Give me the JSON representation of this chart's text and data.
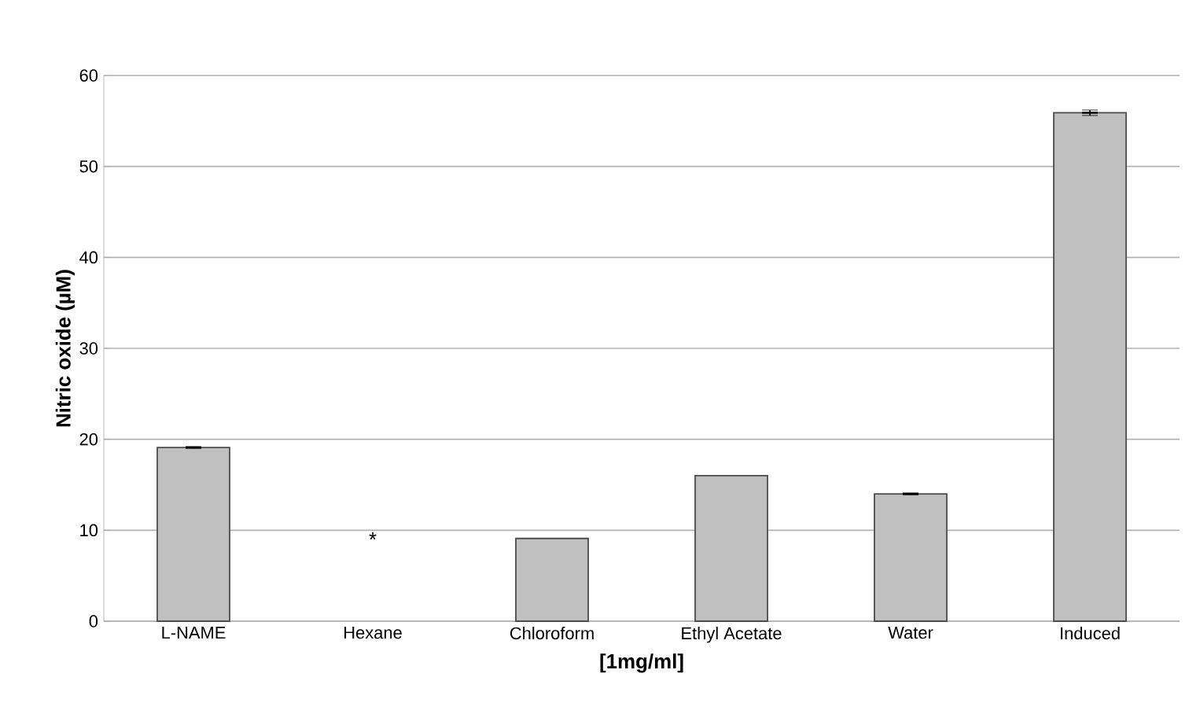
{
  "chart_data": {
    "type": "bar",
    "xlabel": "[1mg/ml]",
    "ylabel": "Nitric oxide (µM)",
    "categories": [
      "L-NAME",
      "Hexane",
      "Chloroform",
      "Ethyl Acetate",
      "Water",
      "Induced"
    ],
    "values": [
      19.1,
      null,
      9.1,
      16.0,
      14.0,
      55.9
    ],
    "errors": [
      0.1,
      null,
      null,
      null,
      0.1,
      0.3
    ],
    "color": "#c0c0c0",
    "ylim": [
      0,
      60
    ],
    "yticks": [
      0,
      10,
      20,
      30,
      40,
      50,
      60
    ],
    "grid": "y",
    "annotations": [
      "*"
    ]
  }
}
